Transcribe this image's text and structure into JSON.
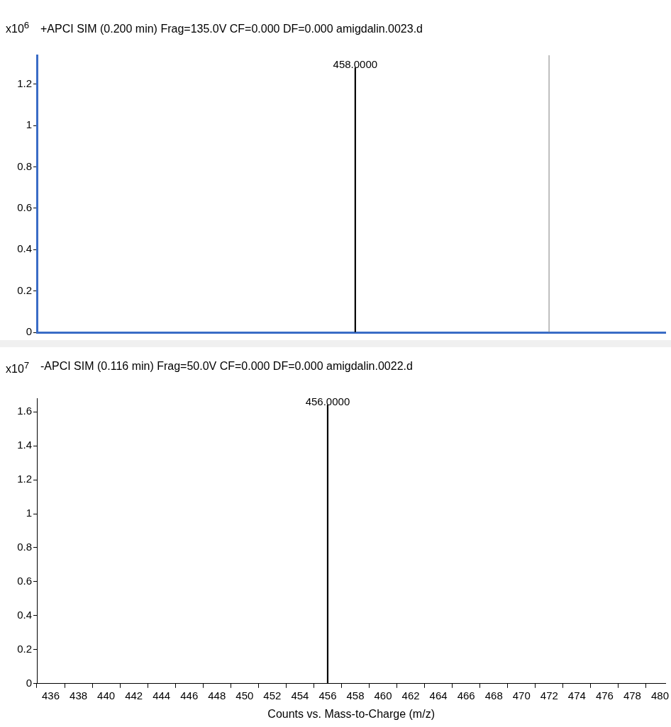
{
  "chart_data": [
    {
      "type": "bar",
      "title": "+APCI SIM (0.200 min) Frag=135.0V CF=0.000 DF=0.000 amigdalin.0023.d",
      "ylabel": "x10$^{6}$",
      "x": [
        458
      ],
      "values": [
        1.28
      ],
      "annotations": [
        {
          "text": "458.0000",
          "x": 458,
          "y": 1.28
        }
      ],
      "color": "#000000",
      "xlim": [
        435,
        480.4
      ],
      "ylim": [
        0,
        1.34
      ],
      "yticks": [
        0,
        0.2,
        0.4,
        0.6,
        0.8,
        1,
        1.2
      ],
      "tick_labels": "y",
      "grid": false,
      "legend": false,
      "ref_lines": [
        {
          "axis": "x",
          "value": 472,
          "color": "#808080"
        }
      ]
    },
    {
      "type": "bar",
      "title": "-APCI SIM (0.116 min) Frag=50.0V CF=0.000 DF=0.000 amigdalin.0022.d",
      "ylabel": "x10$^{7}$",
      "xlabel": "Counts vs. Mass-to-Charge (m/z)",
      "x": [
        456
      ],
      "values": [
        1.64
      ],
      "annotations": [
        {
          "text": "456.0000",
          "x": 456,
          "y": 1.64
        }
      ],
      "color": "#000000",
      "xlim": [
        435,
        480.4
      ],
      "xticks": [
        436,
        438,
        440,
        442,
        444,
        446,
        448,
        450,
        452,
        454,
        456,
        458,
        460,
        462,
        464,
        466,
        468,
        470,
        472,
        474,
        476,
        478,
        480
      ],
      "ylim": [
        0,
        1.68
      ],
      "yticks": [
        0,
        0.2,
        0.4,
        0.6,
        0.8,
        1,
        1.2,
        1.4,
        1.6
      ],
      "grid": false,
      "legend": false
    }
  ]
}
